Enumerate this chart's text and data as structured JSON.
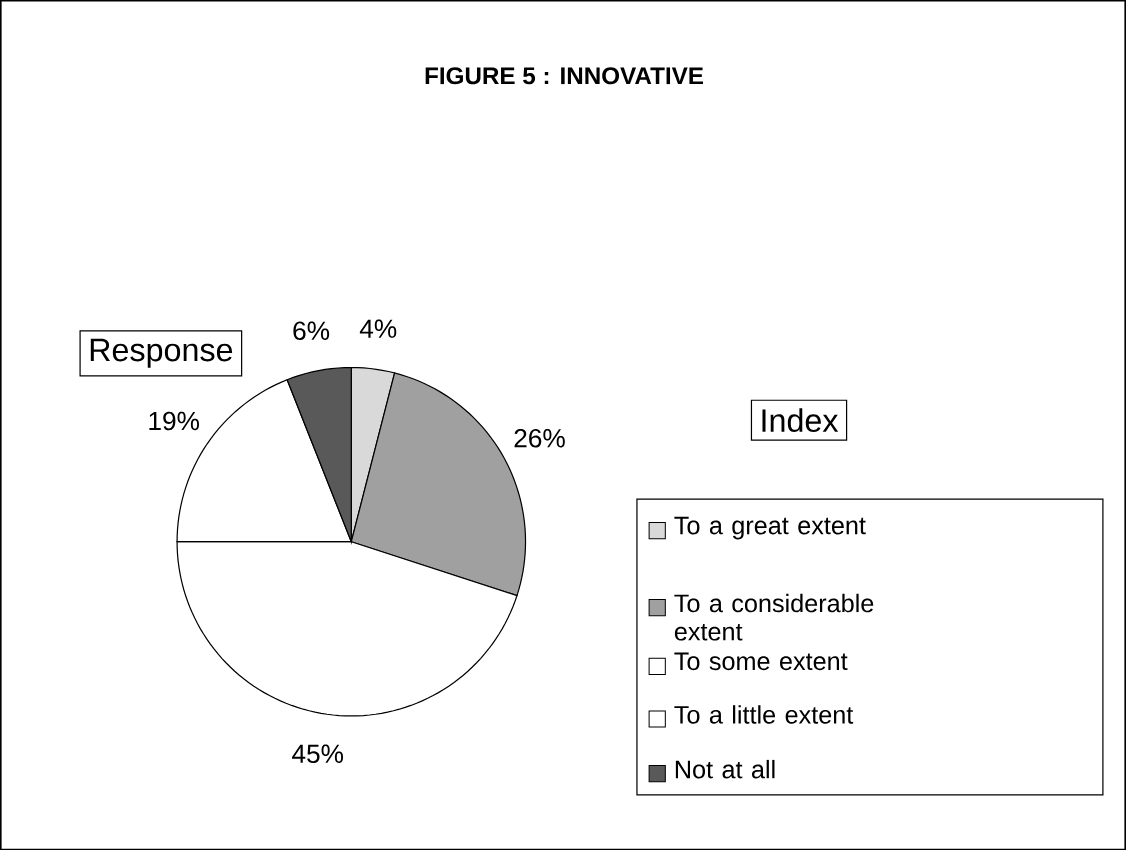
{
  "chart_data": {
    "type": "pie",
    "title": "FIGURE 5 : INNOVATIVE",
    "annotations": [
      "Response"
    ],
    "legend_title": "Index",
    "legend": "right",
    "categories": [
      "To a great extent",
      "To a considerable extent",
      "To some extent",
      "To a little extent",
      "Not at all"
    ],
    "values": [
      4,
      26,
      45,
      19,
      6
    ],
    "value_labels": [
      "4%",
      "26%",
      "45%",
      "19%",
      "6%"
    ],
    "colors": [
      "#d9d9d9",
      "#a0a0a0",
      "#ffffff",
      "#ffffff",
      "#595959"
    ]
  }
}
